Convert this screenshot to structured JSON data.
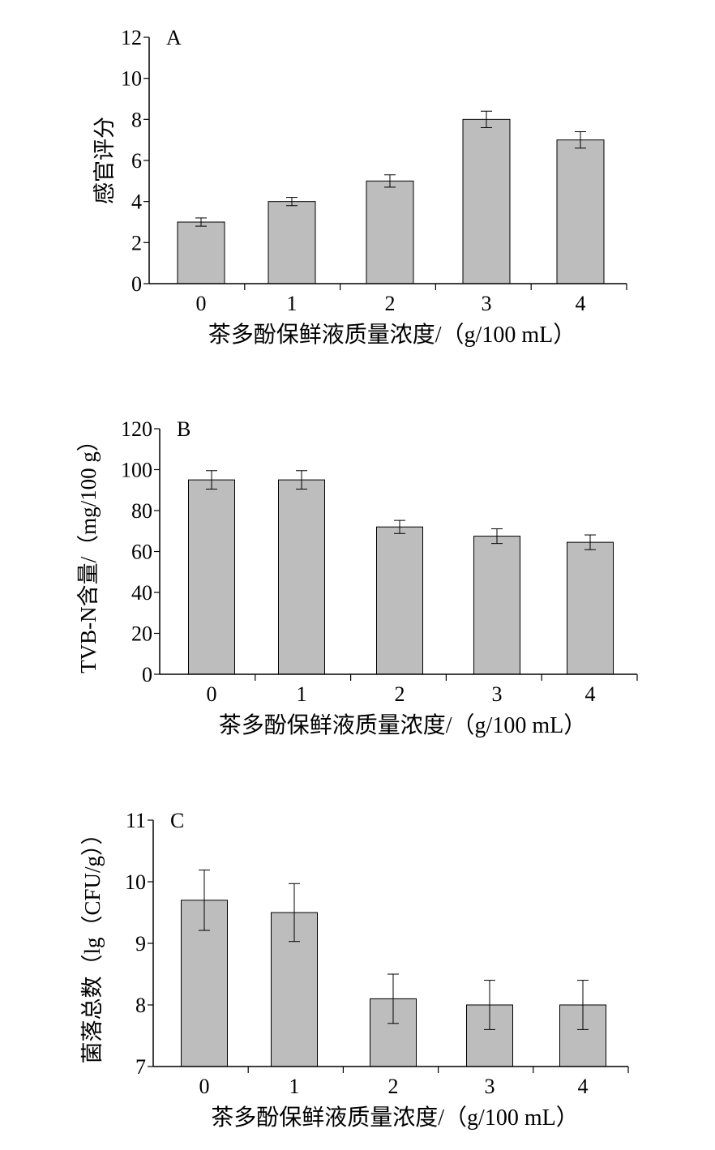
{
  "chart_data": [
    {
      "type": "bar",
      "panel_label": "A",
      "categories": [
        "0",
        "1",
        "2",
        "3",
        "4"
      ],
      "values": [
        3.0,
        4.0,
        5.0,
        8.0,
        7.0
      ],
      "errors": [
        0.2,
        0.2,
        0.3,
        0.4,
        0.4
      ],
      "ylim": [
        0,
        12
      ],
      "yticks": [
        "0",
        "2",
        "4",
        "6",
        "8",
        "10",
        "12"
      ],
      "ylabel": "感官评分",
      "xlabel": "茶多酚保鲜液质量浓度/（g/100 mL）",
      "bar_color": "#bdbdbd"
    },
    {
      "type": "bar",
      "panel_label": "B",
      "categories": [
        "0",
        "1",
        "2",
        "3",
        "4"
      ],
      "values": [
        95,
        95,
        72,
        67.5,
        64.5
      ],
      "errors": [
        4.5,
        4.5,
        3.2,
        3.6,
        3.6
      ],
      "ylim": [
        0,
        120
      ],
      "yticks": [
        "0",
        "20",
        "40",
        "60",
        "80",
        "100",
        "120"
      ],
      "ylabel": "TVB-N含量/（mg/100 g）",
      "xlabel": "茶多酚保鲜液质量浓度/（g/100 mL）",
      "bar_color": "#bdbdbd"
    },
    {
      "type": "bar",
      "panel_label": "C",
      "categories": [
        "0",
        "1",
        "2",
        "3",
        "4"
      ],
      "values": [
        9.7,
        9.5,
        8.1,
        8.0,
        8.0
      ],
      "errors": [
        0.49,
        0.47,
        0.4,
        0.4,
        0.4
      ],
      "ylim": [
        7,
        11
      ],
      "yticks": [
        "7",
        "8",
        "9",
        "10",
        "11"
      ],
      "ylabel": "菌落总数（lg（CFU/g））",
      "xlabel": "茶多酚保鲜液质量浓度/（g/100 mL）",
      "bar_color": "#bdbdbd"
    }
  ]
}
